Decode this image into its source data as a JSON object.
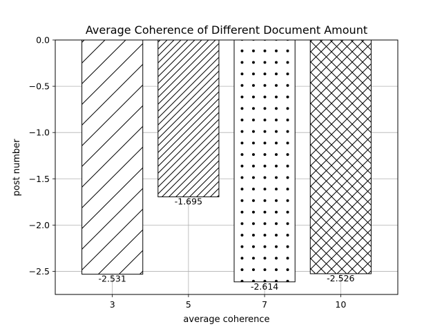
{
  "chart_data": {
    "type": "bar",
    "title": "Average Coherence of Different Document Amount",
    "xlabel": "average coherence",
    "ylabel": "post number",
    "categories": [
      "3",
      "5",
      "7",
      "10"
    ],
    "values": [
      -2.531,
      -1.695,
      -2.614,
      -2.526
    ],
    "data_labels": [
      "-2.531",
      "-1.695",
      "-2.614",
      "-2.526"
    ],
    "hatches": [
      "/",
      "///",
      ".",
      "xx"
    ],
    "ylim": [
      -2.75,
      0.0
    ],
    "yticks": [
      0.0,
      -0.5,
      -1.0,
      -1.5,
      -2.0,
      -2.5
    ],
    "ytick_labels": [
      "0.0",
      "−0.5",
      "−1.0",
      "−1.5",
      "−2.0",
      "−2.5"
    ],
    "grid": true,
    "colors": {
      "bar_fill": "#ffffff",
      "edge": "#000000",
      "grid": "#b0b0b0"
    }
  }
}
